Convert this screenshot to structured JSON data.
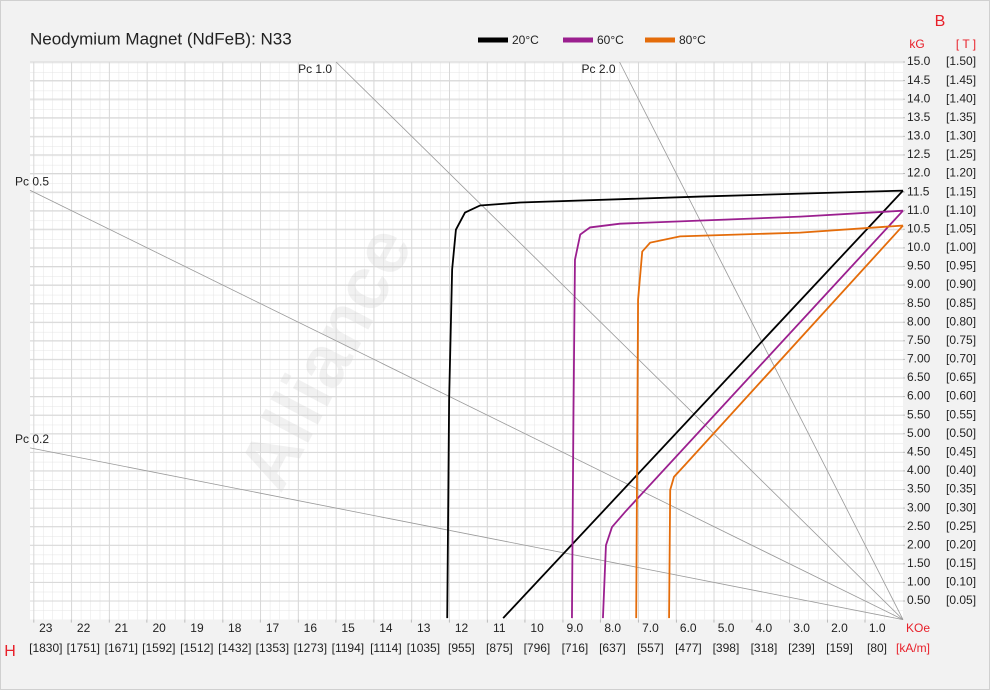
{
  "chart_data": {
    "type": "line",
    "title": "Neodymium Magnet (NdFeB):  N33",
    "watermark": "Alliance",
    "y_axis_label": "B",
    "y_unit": "kG",
    "y2_unit": "[ T ]",
    "x_axis_label": "H",
    "x_unit": "KOe",
    "x2_unit": "[kA/m]",
    "xlim": [
      23.1,
      0
    ],
    "ylim": [
      0,
      15
    ],
    "x2lim": [
      1838,
      0
    ],
    "y2lim": [
      0,
      1.5
    ],
    "grid": true,
    "xticks": [
      23,
      22,
      21,
      20,
      19,
      18,
      17,
      16,
      15,
      14,
      13,
      12,
      11,
      10,
      {
        "value": 9,
        "label": "9.0"
      },
      {
        "value": 8,
        "label": "8.0"
      },
      {
        "value": 7,
        "label": "7.0"
      },
      {
        "value": 6,
        "label": "6.0"
      },
      {
        "value": 5,
        "label": "5.0"
      },
      {
        "value": 4,
        "label": "4.0"
      },
      {
        "value": 3,
        "label": "3.0"
      },
      {
        "value": 2,
        "label": "2.0"
      },
      {
        "value": 1,
        "label": "1.0"
      }
    ],
    "x2ticks": [
      {
        "value": 1830,
        "label": "[1830]"
      },
      {
        "value": 1751,
        "label": "[1751]"
      },
      {
        "value": 1671,
        "label": "[1671]"
      },
      {
        "value": 1592,
        "label": "[1592]"
      },
      {
        "value": 1512,
        "label": "[1512]"
      },
      {
        "value": 1432,
        "label": "[1432]"
      },
      {
        "value": 1353,
        "label": "[1353]"
      },
      {
        "value": 1273,
        "label": "[1273]"
      },
      {
        "value": 1194,
        "label": "[1194]"
      },
      {
        "value": 1114,
        "label": "[1114]"
      },
      {
        "value": 1035,
        "label": "[1035]"
      },
      {
        "value": 955,
        "label": "[955]"
      },
      {
        "value": 875,
        "label": "[875]"
      },
      {
        "value": 796,
        "label": "[796]"
      },
      {
        "value": 716,
        "label": "[716]"
      },
      {
        "value": 637,
        "label": "[637]"
      },
      {
        "value": 557,
        "label": "[557]"
      },
      {
        "value": 477,
        "label": "[477]"
      },
      {
        "value": 398,
        "label": "[398]"
      },
      {
        "value": 318,
        "label": "[318]"
      },
      {
        "value": 239,
        "label": "[239]"
      },
      {
        "value": 159,
        "label": "[159]"
      },
      {
        "value": 80,
        "label": "[80]"
      }
    ],
    "yticks": [
      {
        "value": 0.5,
        "label": "0.50"
      },
      {
        "value": 1,
        "label": "1.00"
      },
      {
        "value": 1.5,
        "label": "1.50"
      },
      {
        "value": 2,
        "label": "2.00"
      },
      {
        "value": 2.5,
        "label": "2.50"
      },
      {
        "value": 3,
        "label": "3.00"
      },
      {
        "value": 3.5,
        "label": "3.50"
      },
      {
        "value": 4,
        "label": "4.00"
      },
      {
        "value": 4.5,
        "label": "4.50"
      },
      {
        "value": 5,
        "label": "5.00"
      },
      {
        "value": 5.5,
        "label": "5.50"
      },
      {
        "value": 6,
        "label": "6.00"
      },
      {
        "value": 6.5,
        "label": "6.50"
      },
      {
        "value": 7,
        "label": "7.00"
      },
      {
        "value": 7.5,
        "label": "7.50"
      },
      {
        "value": 8,
        "label": "8.00"
      },
      {
        "value": 8.5,
        "label": "8.50"
      },
      {
        "value": 9,
        "label": "9.00"
      },
      {
        "value": 9.5,
        "label": "9.50"
      },
      {
        "value": 10,
        "label": "10.0"
      },
      {
        "value": 10.5,
        "label": "10.5"
      },
      {
        "value": 11,
        "label": "11.0"
      },
      {
        "value": 11.5,
        "label": "11.5"
      },
      {
        "value": 12,
        "label": "12.0"
      },
      {
        "value": 12.5,
        "label": "12.5"
      },
      {
        "value": 13,
        "label": "13.0"
      },
      {
        "value": 13.5,
        "label": "13.5"
      },
      {
        "value": 14,
        "label": "14.0"
      },
      {
        "value": 14.5,
        "label": "14.5"
      },
      {
        "value": 15,
        "label": "15.0"
      }
    ],
    "y2ticks": [
      {
        "value": 0.05,
        "label": "[0.05]"
      },
      {
        "value": 0.1,
        "label": "[0.10]"
      },
      {
        "value": 0.15,
        "label": "[0.15]"
      },
      {
        "value": 0.2,
        "label": "[0.20]"
      },
      {
        "value": 0.25,
        "label": "[0.25]"
      },
      {
        "value": 0.3,
        "label": "[0.30]"
      },
      {
        "value": 0.35,
        "label": "[0.35]"
      },
      {
        "value": 0.4,
        "label": "[0.40]"
      },
      {
        "value": 0.45,
        "label": "[0.45]"
      },
      {
        "value": 0.5,
        "label": "[0.50]"
      },
      {
        "value": 0.55,
        "label": "[0.55]"
      },
      {
        "value": 0.6,
        "label": "[0.60]"
      },
      {
        "value": 0.65,
        "label": "[0.65]"
      },
      {
        "value": 0.7,
        "label": "[0.70]"
      },
      {
        "value": 0.75,
        "label": "[0.75]"
      },
      {
        "value": 0.8,
        "label": "[0.80]"
      },
      {
        "value": 0.85,
        "label": "[0.85]"
      },
      {
        "value": 0.9,
        "label": "[0.90]"
      },
      {
        "value": 0.95,
        "label": "[0.95]"
      },
      {
        "value": 1,
        "label": "[1.00]"
      },
      {
        "value": 1.05,
        "label": "[1.05]"
      },
      {
        "value": 1.1,
        "label": "[1.10]"
      },
      {
        "value": 1.15,
        "label": "[1.15]"
      },
      {
        "value": 1.2,
        "label": "[1.20]"
      },
      {
        "value": 1.25,
        "label": "[1.25]"
      },
      {
        "value": 1.3,
        "label": "[1.30]"
      },
      {
        "value": 1.35,
        "label": "[1.35]"
      },
      {
        "value": 1.4,
        "label": "[1.40]"
      },
      {
        "value": 1.45,
        "label": "[1.45]"
      },
      {
        "value": 1.5,
        "label": "[1.50]"
      }
    ],
    "load_lines": [
      {
        "label": "Pc 1.0",
        "pc": 1
      },
      {
        "label": "Pc 2.0",
        "pc": 2
      },
      {
        "label": "Pc 0.5",
        "pc": 0.5
      },
      {
        "label": "Pc 0.2",
        "pc": 0.2
      }
    ],
    "series": [
      {
        "name": "20°C",
        "color": "#000000",
        "curves": [
          {
            "x": [
              12.06,
              12.01,
              11.93,
              11.83,
              11.59,
              11.19,
              10.13,
              5.37,
              0
            ],
            "values": [
              0.04,
              5.91,
              9.42,
              10.49,
              10.95,
              11.14,
              11.22,
              11.38,
              11.54
            ]
          },
          {
            "x": [
              10.58,
              0
            ],
            "values": [
              0.04,
              11.54
            ]
          }
        ]
      },
      {
        "name": "60°C",
        "color": "#9b1f8f",
        "curves": [
          {
            "x": [
              8.76,
              8.72,
              8.68,
              8.54,
              8.28,
              7.49,
              2.72,
              0
            ],
            "values": [
              0.04,
              5.5,
              9.68,
              10.36,
              10.55,
              10.65,
              10.84,
              11.0
            ]
          },
          {
            "x": [
              7.94,
              7.86,
              7.7,
              7.35,
              0
            ],
            "values": [
              0.04,
              2.0,
              2.49,
              2.9,
              11.0
            ]
          }
        ]
      },
      {
        "name": "80°C",
        "color": "#e46c0a",
        "curves": [
          {
            "x": [
              7.06,
              7.01,
              6.9,
              6.69,
              5.9,
              2.72,
              0
            ],
            "values": [
              0.04,
              8.61,
              9.9,
              10.14,
              10.31,
              10.41,
              10.6
            ]
          },
          {
            "x": [
              6.19,
              6.16,
              6.06,
              5.77,
              0
            ],
            "values": [
              0.04,
              3.49,
              3.84,
              4.16,
              10.6
            ]
          }
        ]
      }
    ]
  }
}
